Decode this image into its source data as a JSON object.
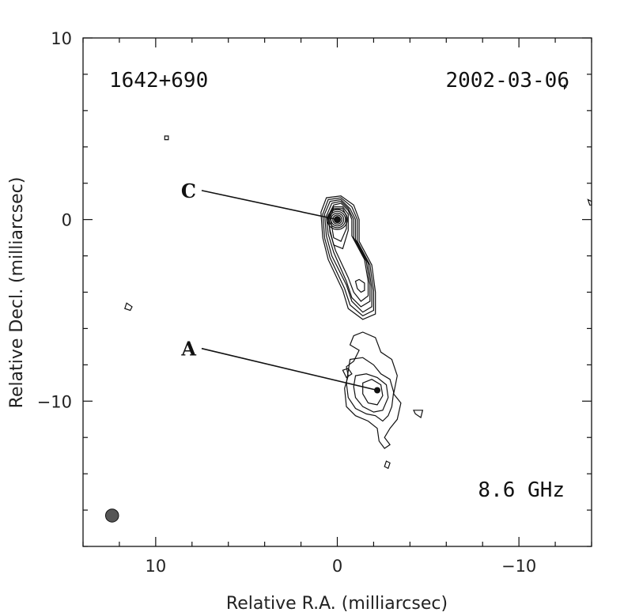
{
  "chart_data": {
    "type": "contour",
    "xlabel": "Relative R.A. (milliarcsec)",
    "ylabel": "Relative Decl. (milliarcsec)",
    "xlim": [
      14,
      -14
    ],
    "ylim": [
      -18,
      10
    ],
    "x_ticks": [
      10,
      0,
      -10
    ],
    "x_tick_labels": [
      "10",
      "0",
      "−10"
    ],
    "y_ticks": [
      10,
      0,
      -10
    ],
    "y_tick_labels": [
      "10",
      "0",
      "−10"
    ],
    "source": "1642+690",
    "date": "2002-03-06",
    "frequency": "8.6 GHz",
    "components": [
      {
        "label": "C",
        "ra": 0.0,
        "dec": 0.0,
        "label_ra": 7.6,
        "label_dec": 1.6
      },
      {
        "label": "A",
        "ra": -2.2,
        "dec": -9.4,
        "label_ra": 7.6,
        "label_dec": -7.1
      }
    ],
    "core_contours": [
      [
        [
          0.9,
          0.4
        ],
        [
          0.6,
          1.2
        ],
        [
          -0.2,
          1.3
        ],
        [
          -0.9,
          0.8
        ],
        [
          -1.2,
          0.0
        ],
        [
          -1.2,
          -1.2
        ],
        [
          -1.9,
          -2.5
        ],
        [
          -2.1,
          -4.0
        ],
        [
          -2.1,
          -5.2
        ],
        [
          -1.4,
          -5.5
        ],
        [
          -0.6,
          -4.9
        ],
        [
          -0.3,
          -3.9
        ],
        [
          0.5,
          -2.2
        ],
        [
          0.8,
          -1.0
        ]
      ],
      [
        [
          0.8,
          0.3
        ],
        [
          0.5,
          1.1
        ],
        [
          -0.2,
          1.2
        ],
        [
          -0.8,
          0.7
        ],
        [
          -1.1,
          0.0
        ],
        [
          -1.1,
          -1.2
        ],
        [
          -1.8,
          -2.5
        ],
        [
          -2.0,
          -3.9
        ],
        [
          -2.0,
          -5.0
        ],
        [
          -1.4,
          -5.3
        ],
        [
          -0.7,
          -4.7
        ],
        [
          -0.4,
          -3.8
        ],
        [
          0.4,
          -2.1
        ],
        [
          0.7,
          -1.0
        ]
      ],
      [
        [
          0.7,
          0.3
        ],
        [
          0.4,
          1.0
        ],
        [
          -0.2,
          1.1
        ],
        [
          -0.7,
          0.6
        ],
        [
          -1.0,
          0.0
        ],
        [
          -1.0,
          -1.1
        ],
        [
          -1.7,
          -2.4
        ],
        [
          -1.9,
          -3.8
        ],
        [
          -1.9,
          -4.8
        ],
        [
          -1.4,
          -5.1
        ],
        [
          -0.8,
          -4.5
        ],
        [
          -0.5,
          -3.6
        ],
        [
          0.3,
          -2.0
        ],
        [
          0.6,
          -0.9
        ]
      ],
      [
        [
          0.6,
          0.2
        ],
        [
          0.3,
          0.9
        ],
        [
          -0.2,
          1.0
        ],
        [
          -0.6,
          0.6
        ],
        [
          -0.9,
          0.0
        ],
        [
          -0.9,
          -1.0
        ],
        [
          -1.6,
          -2.3
        ],
        [
          -1.8,
          -3.6
        ],
        [
          -1.8,
          -4.5
        ],
        [
          -1.3,
          -4.8
        ],
        [
          -0.8,
          -4.3
        ],
        [
          -0.5,
          -3.4
        ],
        [
          0.2,
          -1.8
        ],
        [
          0.5,
          -0.8
        ]
      ],
      [
        [
          0.5,
          0.2
        ],
        [
          0.2,
          0.8
        ],
        [
          -0.2,
          0.9
        ],
        [
          -0.6,
          0.5
        ],
        [
          -0.8,
          0.0
        ],
        [
          -0.8,
          -0.9
        ],
        [
          -1.5,
          -2.2
        ],
        [
          -1.7,
          -3.4
        ],
        [
          -1.7,
          -4.2
        ],
        [
          -1.3,
          -4.5
        ],
        [
          -0.9,
          -4.0
        ],
        [
          -0.6,
          -3.2
        ],
        [
          0.1,
          -1.7
        ],
        [
          0.4,
          -0.7
        ]
      ],
      [
        [
          0.5,
          0.1
        ],
        [
          0.2,
          0.7
        ],
        [
          -0.3,
          0.7
        ],
        [
          -0.6,
          0.3
        ],
        [
          -0.6,
          -0.6
        ],
        [
          -0.3,
          -1.6
        ],
        [
          0.2,
          -1.4
        ],
        [
          0.4,
          -0.6
        ]
      ],
      [
        [
          0.4,
          0.1
        ],
        [
          0.2,
          0.6
        ],
        [
          -0.3,
          0.6
        ],
        [
          -0.5,
          0.2
        ],
        [
          -0.5,
          -0.5
        ],
        [
          -0.2,
          -1.2
        ],
        [
          0.2,
          -1.0
        ],
        [
          0.3,
          -0.4
        ]
      ],
      [
        [
          -1.0,
          -3.4
        ],
        [
          -1.2,
          -3.3
        ],
        [
          -1.5,
          -3.5
        ],
        [
          -1.5,
          -3.9
        ],
        [
          -1.3,
          -4.0
        ],
        [
          -1.1,
          -3.8
        ]
      ]
    ],
    "core_rings": [
      0.55,
      0.45,
      0.35,
      0.25,
      0.17
    ],
    "jet_contours": [
      [
        [
          -0.9,
          -6.4
        ],
        [
          -1.4,
          -6.2
        ],
        [
          -2.1,
          -6.5
        ],
        [
          -2.4,
          -7.3
        ],
        [
          -3.0,
          -7.7
        ],
        [
          -3.3,
          -8.6
        ],
        [
          -3.1,
          -9.6
        ],
        [
          -3.5,
          -10.1
        ],
        [
          -3.3,
          -11.0
        ],
        [
          -2.9,
          -11.5
        ],
        [
          -2.6,
          -12.0
        ],
        [
          -2.9,
          -12.4
        ],
        [
          -2.6,
          -12.6
        ],
        [
          -2.3,
          -12.2
        ],
        [
          -2.2,
          -11.5
        ],
        [
          -1.7,
          -11.1
        ],
        [
          -1.0,
          -10.8
        ],
        [
          -0.5,
          -10.3
        ],
        [
          -0.4,
          -9.3
        ],
        [
          -0.6,
          -8.6
        ],
        [
          -0.5,
          -8.1
        ],
        [
          -0.9,
          -7.8
        ],
        [
          -1.2,
          -7.2
        ],
        [
          -0.7,
          -6.9
        ]
      ],
      [
        [
          -0.7,
          -7.7
        ],
        [
          -1.4,
          -7.6
        ],
        [
          -2.0,
          -8.0
        ],
        [
          -2.4,
          -8.5
        ],
        [
          -2.9,
          -8.8
        ],
        [
          -3.1,
          -9.5
        ],
        [
          -3.0,
          -10.3
        ],
        [
          -2.8,
          -10.8
        ],
        [
          -2.5,
          -11.1
        ],
        [
          -2.1,
          -10.8
        ],
        [
          -1.6,
          -10.7
        ],
        [
          -1.0,
          -10.4
        ],
        [
          -0.6,
          -9.8
        ],
        [
          -0.5,
          -9.0
        ]
      ],
      [
        [
          -1.0,
          -8.6
        ],
        [
          -1.6,
          -8.5
        ],
        [
          -2.2,
          -8.7
        ],
        [
          -2.7,
          -9.1
        ],
        [
          -2.8,
          -9.8
        ],
        [
          -2.5,
          -10.5
        ],
        [
          -2.0,
          -10.6
        ],
        [
          -1.4,
          -10.3
        ],
        [
          -1.0,
          -9.8
        ],
        [
          -0.9,
          -9.2
        ]
      ],
      [
        [
          -1.4,
          -9.0
        ],
        [
          -1.9,
          -8.8
        ],
        [
          -2.4,
          -9.1
        ],
        [
          -2.5,
          -9.7
        ],
        [
          -2.2,
          -10.2
        ],
        [
          -1.7,
          -10.1
        ],
        [
          -1.4,
          -9.6
        ]
      ],
      [
        [
          -0.3,
          -8.3
        ],
        [
          -0.6,
          -8.2
        ],
        [
          -0.8,
          -8.5
        ],
        [
          -0.5,
          -8.7
        ]
      ],
      [
        [
          -4.2,
          -10.5
        ],
        [
          -4.7,
          -10.5
        ],
        [
          -4.6,
          -10.9
        ],
        [
          -4.3,
          -10.7
        ]
      ]
    ],
    "islands": [
      [
        [
          9.5,
          4.6
        ],
        [
          9.3,
          4.6
        ],
        [
          9.3,
          4.4
        ],
        [
          9.5,
          4.4
        ]
      ],
      [
        [
          11.6,
          -4.6
        ],
        [
          11.3,
          -4.8
        ],
        [
          11.4,
          -5.0
        ],
        [
          11.7,
          -4.9
        ]
      ],
      [
        [
          -2.7,
          -13.3
        ],
        [
          -2.9,
          -13.4
        ],
        [
          -2.8,
          -13.7
        ],
        [
          -2.6,
          -13.6
        ]
      ],
      [
        [
          -13.8,
          1.1
        ],
        [
          -14.0,
          1.0
        ],
        [
          -14.0,
          0.8
        ],
        [
          -13.9,
          0.8
        ]
      ],
      [
        [
          -12.5,
          7.4
        ],
        [
          -12.6,
          7.3
        ],
        [
          -12.5,
          7.2
        ]
      ]
    ],
    "beam": {
      "ra": 12.4,
      "dec": -16.3,
      "radius_mas": 0.36,
      "fill": "#555555"
    }
  }
}
